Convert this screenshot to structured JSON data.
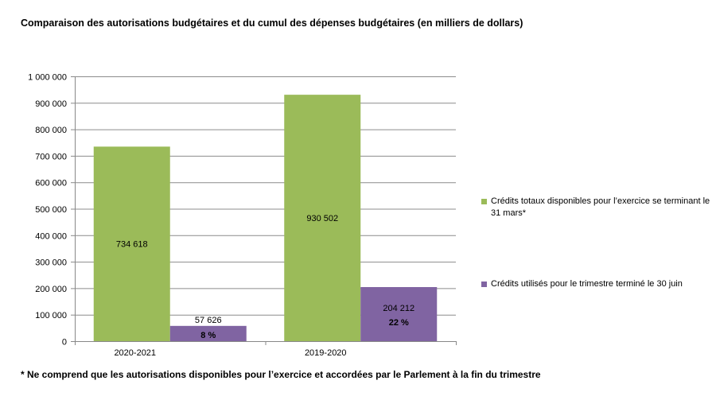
{
  "title": "Comparaison des autorisations budgétaires et du cumul des dépenses budgétaires (en milliers de dollars)",
  "footnote": "* Ne comprend que les autorisations disponibles pour l’exercice et accordées par le Parlement à la fin du trimestre",
  "chart_data": {
    "type": "bar",
    "categories": [
      "2020-2021",
      "2019-2020"
    ],
    "series": [
      {
        "name": "Crédits totaux disponibles pour l’exercice se terminant le\n31 mars*",
        "color": "#9bbb59",
        "values": [
          734618,
          930502
        ],
        "labels": [
          "734 618",
          "930 502"
        ]
      },
      {
        "name": "Crédits utilisés pour le trimestre terminé le 30 juin",
        "color": "#8064a2",
        "values": [
          57626,
          204212
        ],
        "labels": [
          "57 626",
          "204 212"
        ],
        "percent_labels": [
          "8 %",
          "22 %"
        ]
      }
    ],
    "ylim": [
      0,
      1000000
    ],
    "yticks": [
      0,
      100000,
      200000,
      300000,
      400000,
      500000,
      600000,
      700000,
      800000,
      900000,
      1000000
    ],
    "ytick_labels": [
      "0",
      "100 000",
      "200 000",
      "300 000",
      "400 000",
      "500 000",
      "600 000",
      "700 000",
      "800 000",
      "900 000",
      "1 000 000"
    ],
    "grid": true,
    "legend_position": "right"
  }
}
